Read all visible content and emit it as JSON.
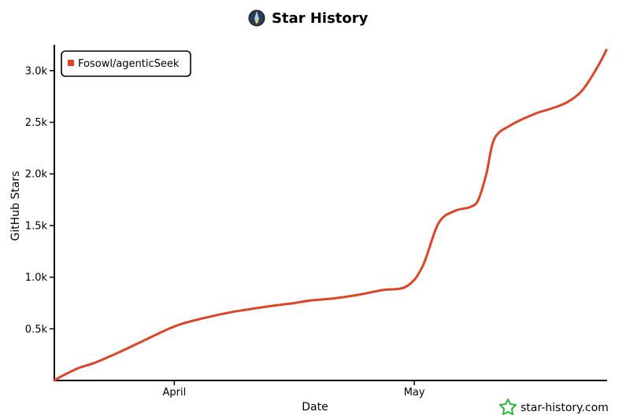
{
  "chart_data": {
    "type": "line",
    "title": "Star History",
    "xlabel": "Date",
    "ylabel": "GitHub Stars",
    "x_ticks": [
      "April",
      "May"
    ],
    "x_tick_dates": [
      "2025-04-01",
      "2025-05-01"
    ],
    "xlim": [
      "2025-03-17",
      "2025-05-25"
    ],
    "y_ticks": [
      500,
      1000,
      1500,
      2000,
      2500,
      3000
    ],
    "y_tick_labels": [
      "0.5k",
      "1.0k",
      "1.5k",
      "2.0k",
      "2.5k",
      "3.0k"
    ],
    "ylim": [
      0,
      3250
    ],
    "legend_position": "top-left",
    "grid": false,
    "series": [
      {
        "name": "Fosowl/agenticSeek",
        "color": "#dd4528",
        "points": [
          [
            "2025-03-17",
            0
          ],
          [
            "2025-03-18",
            45
          ],
          [
            "2025-03-20",
            120
          ],
          [
            "2025-03-22",
            170
          ],
          [
            "2025-03-25",
            270
          ],
          [
            "2025-03-28",
            380
          ],
          [
            "2025-03-31",
            490
          ],
          [
            "2025-04-02",
            550
          ],
          [
            "2025-04-05",
            610
          ],
          [
            "2025-04-08",
            660
          ],
          [
            "2025-04-10",
            685
          ],
          [
            "2025-04-13",
            720
          ],
          [
            "2025-04-16",
            750
          ],
          [
            "2025-04-18",
            775
          ],
          [
            "2025-04-21",
            795
          ],
          [
            "2025-04-24",
            830
          ],
          [
            "2025-04-27",
            875
          ],
          [
            "2025-04-30",
            910
          ],
          [
            "2025-05-02",
            1100
          ],
          [
            "2025-05-04",
            1520
          ],
          [
            "2025-05-06",
            1640
          ],
          [
            "2025-05-08",
            1680
          ],
          [
            "2025-05-09",
            1750
          ],
          [
            "2025-05-10",
            2000
          ],
          [
            "2025-05-11",
            2340
          ],
          [
            "2025-05-13",
            2470
          ],
          [
            "2025-05-16",
            2580
          ],
          [
            "2025-05-18",
            2630
          ],
          [
            "2025-05-20",
            2690
          ],
          [
            "2025-05-22",
            2810
          ],
          [
            "2025-05-24",
            3050
          ],
          [
            "2025-05-25",
            3200
          ]
        ]
      }
    ]
  },
  "watermark": "star-history.com",
  "icons": {
    "title_icon": "star-history-logo-icon",
    "watermark_icon": "star-outline-icon"
  }
}
